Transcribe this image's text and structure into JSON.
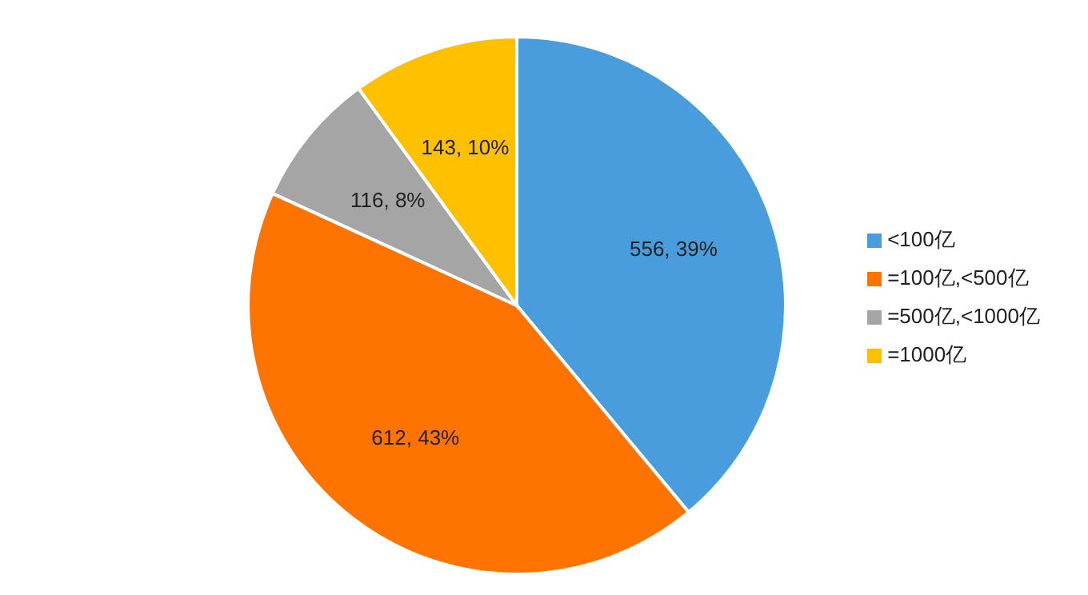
{
  "chart_data": {
    "type": "pie",
    "categories": [
      "<100亿",
      "=100亿,<500亿",
      "=500亿,<1000亿",
      "=1000亿"
    ],
    "values": [
      556,
      612,
      116,
      143
    ],
    "colors": [
      "#4a9ddc",
      "#ff7300",
      "#a5a5a5",
      "#ffc000"
    ],
    "value_labels": [
      "556, 39%",
      "612, 43%",
      "116, 8%",
      "143, 10%"
    ],
    "legend": "right"
  }
}
